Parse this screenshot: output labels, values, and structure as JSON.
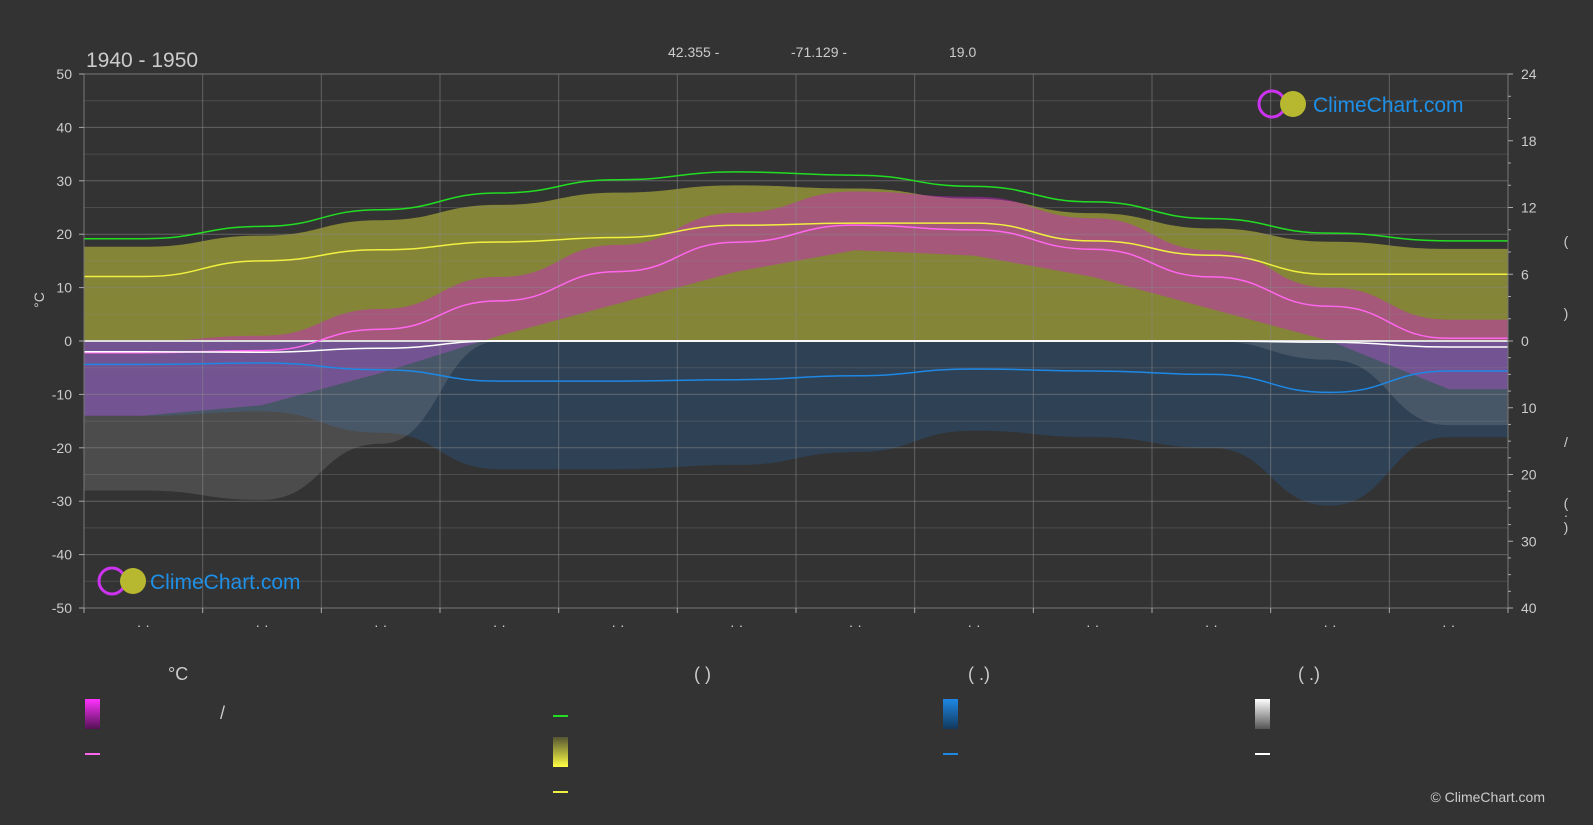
{
  "header": {
    "period": "1940 - 1950",
    "latitude": "42.355 -",
    "longitude": "-71.129 -",
    "elevation": "19.0"
  },
  "colors": {
    "background": "#333333",
    "daylight": "#22dd22",
    "sunshine_line": "#f0f040",
    "avg_temp": "#ff66ee",
    "rain_line": "#1e88e5",
    "snow_line": "#ffffff",
    "temp_band": "#cc22cc",
    "sun_band": "#c8c83a",
    "rain_band": "#1e78d0",
    "snow_band": "#aaaaaa",
    "logo": "#1e90e8"
  },
  "logo": {
    "text": "ClimeChart.com"
  },
  "copyright": "© ClimeChart.com",
  "chart_data": {
    "type": "line",
    "x_months": [
      1,
      2,
      3,
      4,
      5,
      6,
      7,
      8,
      9,
      10,
      11,
      12
    ],
    "month_tick_labels": [
      "· ·",
      "· ·",
      "· ·",
      "· ·",
      "· ·",
      "· ·",
      "· ·",
      "· ·",
      "· ·",
      "· ·",
      "· ·",
      "· ·"
    ],
    "left_axis": {
      "label": "°C",
      "ylim": [
        -50,
        50
      ],
      "ticks": [
        50,
        40,
        30,
        20,
        10,
        0,
        -10,
        -20,
        -30,
        -40,
        -50
      ]
    },
    "right_axis_upper": {
      "ylim": [
        0,
        24
      ],
      "ticks": [
        24,
        18,
        12,
        6,
        0
      ],
      "label_glyphs": [
        "(",
        ")"
      ]
    },
    "right_axis_lower": {
      "ylim": [
        0,
        40
      ],
      "ticks": [
        0,
        10,
        20,
        30,
        40
      ],
      "label_glyphs": [
        "/",
        "(",
        "·",
        ")"
      ]
    },
    "grid": true,
    "series": [
      {
        "key": "daylight",
        "axis": "right_upper",
        "values": [
          9.2,
          10.3,
          11.8,
          13.3,
          14.5,
          15.2,
          14.9,
          13.9,
          12.5,
          11.0,
          9.7,
          9.0
        ]
      },
      {
        "key": "sunshine",
        "axis": "right_upper",
        "values": [
          5.8,
          7.2,
          8.2,
          8.9,
          9.3,
          10.4,
          10.6,
          10.6,
          9.0,
          7.7,
          6.0,
          6.0
        ]
      },
      {
        "key": "avg_temp",
        "axis": "left",
        "values": [
          -2.2,
          -1.8,
          2.2,
          7.5,
          13.0,
          18.5,
          21.7,
          20.8,
          17.2,
          12.0,
          6.5,
          0.5
        ]
      },
      {
        "key": "rain",
        "axis": "right_lower",
        "values": [
          3.5,
          3.3,
          4.3,
          6.0,
          6.0,
          5.8,
          5.2,
          4.2,
          4.5,
          5.0,
          7.7,
          4.5
        ]
      },
      {
        "key": "snow",
        "axis": "right_lower",
        "values": [
          1.6,
          1.7,
          1.1,
          0.0,
          0.0,
          0.0,
          0.0,
          0.0,
          0.0,
          0.0,
          0.2,
          0.9
        ]
      }
    ],
    "temp_band": {
      "max": [
        0,
        1,
        6,
        12,
        18,
        24,
        28,
        27,
        23,
        17,
        10,
        4
      ],
      "min": [
        -14,
        -12,
        -6,
        1,
        7,
        13,
        17,
        16,
        12,
        6,
        0,
        -9
      ]
    }
  },
  "legend": {
    "col1": {
      "header": "°C",
      "row1_sep": "/"
    },
    "col2": {
      "header": "(          )"
    },
    "col3": {
      "header": "(    .)"
    },
    "col4": {
      "header": "(    .)"
    }
  }
}
